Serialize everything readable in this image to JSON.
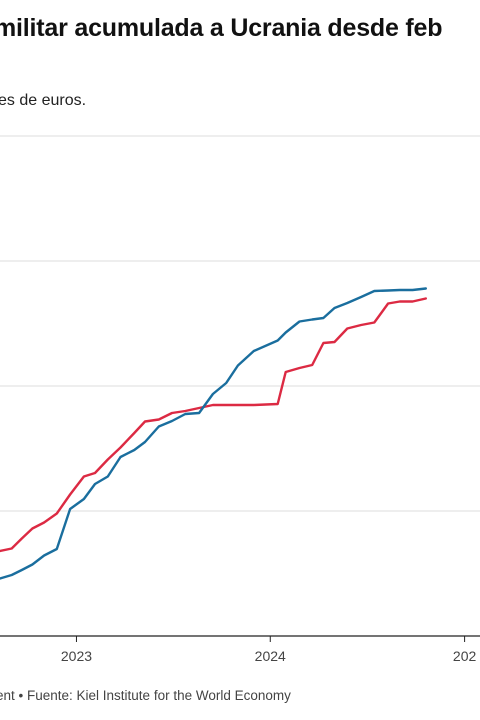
{
  "header": {
    "title": "militar acumulada a Ucrania desde feb",
    "subtitle": "es de euros."
  },
  "footer": {
    "source": "ent • Fuente: Kiel Institute for the World Economy"
  },
  "chart_data": {
    "type": "line",
    "title": "militar acumulada a Ucrania desde feb",
    "subtitle": "es de euros.",
    "xlabel": "",
    "ylabel": "",
    "grid": true,
    "x_tick_labels": [
      "2023",
      "2024",
      "202"
    ],
    "x_tick_positions": [
      "2023-01-01",
      "2024-01-01",
      "2025-01-01"
    ],
    "xlim": [
      "2022-08-10",
      "2025-01-30"
    ],
    "ylim": [
      0,
      100
    ],
    "y_gridlines": [
      0,
      25,
      50,
      75,
      100
    ],
    "series": [
      {
        "color": "#dc2a43",
        "points": [
          [
            "2022-08-10",
            17
          ],
          [
            "2022-09-01",
            17.5
          ],
          [
            "2022-09-20",
            19.5
          ],
          [
            "2022-10-10",
            21.5
          ],
          [
            "2022-11-01",
            22.7
          ],
          [
            "2022-11-25",
            24.5
          ],
          [
            "2022-12-20",
            28.3
          ],
          [
            "2023-01-15",
            31.9
          ],
          [
            "2023-02-05",
            32.6
          ],
          [
            "2023-03-01",
            35.3
          ],
          [
            "2023-03-25",
            37.7
          ],
          [
            "2023-04-20",
            40.6
          ],
          [
            "2023-05-10",
            42.9
          ],
          [
            "2023-06-05",
            43.3
          ],
          [
            "2023-06-30",
            44.6
          ],
          [
            "2023-07-25",
            45
          ],
          [
            "2023-08-20",
            45.6
          ],
          [
            "2023-09-15",
            46.2
          ],
          [
            "2023-10-10",
            46.2
          ],
          [
            "2023-11-01",
            46.2
          ],
          [
            "2023-12-01",
            46.2
          ],
          [
            "2024-01-15",
            46.4
          ],
          [
            "2024-01-30",
            52.8
          ],
          [
            "2024-02-25",
            53.6
          ],
          [
            "2024-03-20",
            54.2
          ],
          [
            "2024-04-10",
            58.6
          ],
          [
            "2024-05-01",
            58.8
          ],
          [
            "2024-05-25",
            61.5
          ],
          [
            "2024-06-20",
            62.2
          ],
          [
            "2024-07-15",
            62.7
          ],
          [
            "2024-08-10",
            66.5
          ],
          [
            "2024-09-01",
            66.9
          ],
          [
            "2024-09-25",
            66.9
          ],
          [
            "2024-10-20",
            67.5
          ]
        ]
      },
      {
        "color": "#1a6e9e",
        "points": [
          [
            "2022-08-10",
            11.5
          ],
          [
            "2022-09-01",
            12.2
          ],
          [
            "2022-09-20",
            13.2
          ],
          [
            "2022-10-10",
            14.3
          ],
          [
            "2022-11-01",
            16.1
          ],
          [
            "2022-11-25",
            17.4
          ],
          [
            "2022-12-20",
            25.4
          ],
          [
            "2023-01-15",
            27.4
          ],
          [
            "2023-02-05",
            30.4
          ],
          [
            "2023-03-01",
            31.9
          ],
          [
            "2023-03-25",
            35.8
          ],
          [
            "2023-04-20",
            37.2
          ],
          [
            "2023-05-10",
            38.8
          ],
          [
            "2023-06-05",
            41.9
          ],
          [
            "2023-06-30",
            43
          ],
          [
            "2023-07-25",
            44.4
          ],
          [
            "2023-08-20",
            44.6
          ],
          [
            "2023-09-15",
            48.4
          ],
          [
            "2023-10-10",
            50.6
          ],
          [
            "2023-11-01",
            54.1
          ],
          [
            "2023-12-01",
            57
          ],
          [
            "2024-01-15",
            59.1
          ],
          [
            "2024-01-30",
            60.7
          ],
          [
            "2024-02-25",
            62.9
          ],
          [
            "2024-03-20",
            63.3
          ],
          [
            "2024-04-10",
            63.6
          ],
          [
            "2024-05-01",
            65.6
          ],
          [
            "2024-05-25",
            66.6
          ],
          [
            "2024-06-20",
            67.8
          ],
          [
            "2024-07-15",
            69
          ],
          [
            "2024-08-10",
            69.1
          ],
          [
            "2024-09-01",
            69.2
          ],
          [
            "2024-09-25",
            69.2
          ],
          [
            "2024-10-20",
            69.5
          ]
        ]
      }
    ]
  }
}
